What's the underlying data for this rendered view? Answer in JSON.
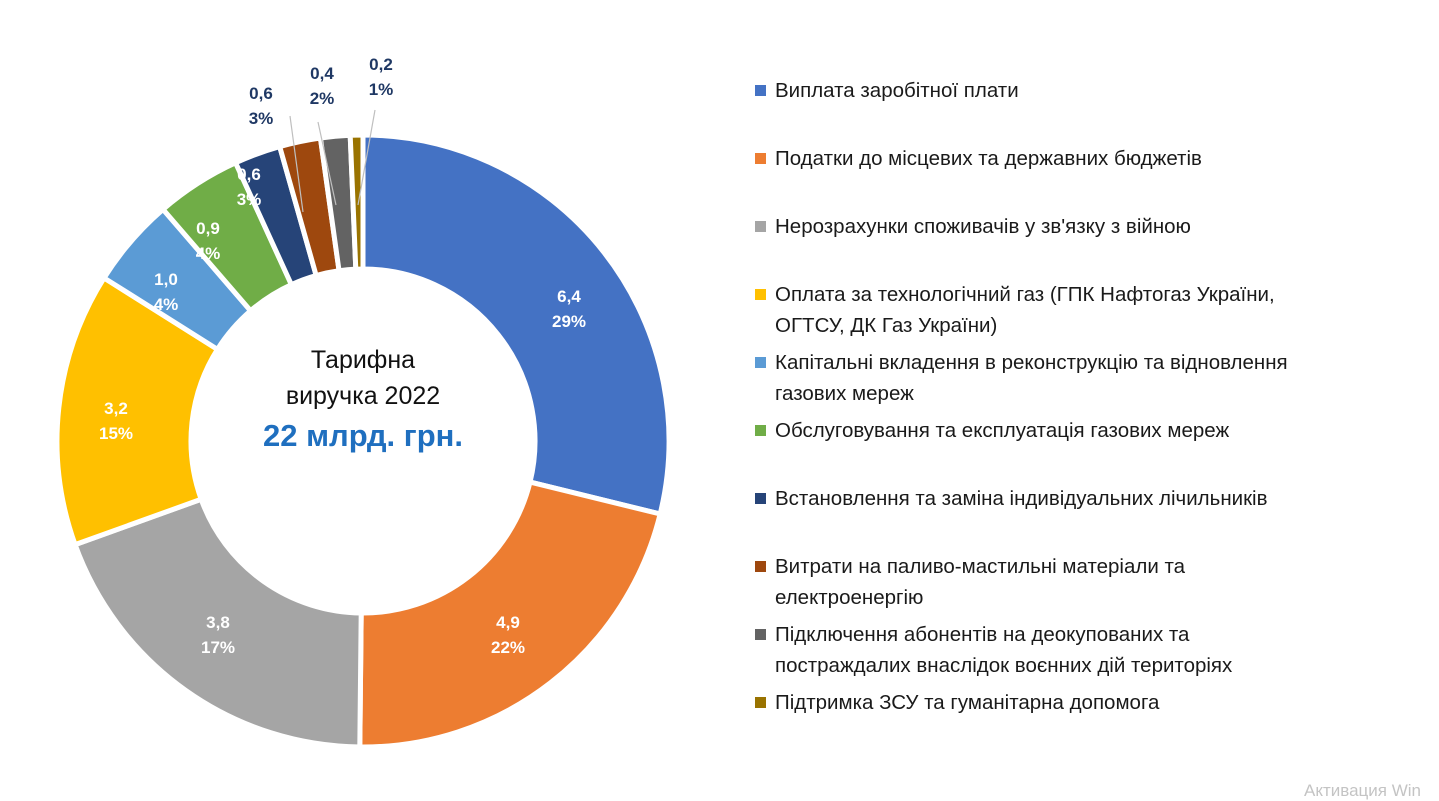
{
  "chart_data": {
    "type": "pie",
    "variant": "donut",
    "title": "Тарифна виручка 2022",
    "center_label": {
      "line1": "Тарифна",
      "line2": "виручка 2022",
      "total": "22 млрд. грн."
    },
    "unit": "млрд. грн.",
    "legend_position": "right",
    "series": [
      {
        "name": "Виплата заробітної плати",
        "value": 6.4,
        "value_label": "6,4",
        "percent": 29,
        "percent_label": "29%",
        "color": "#4472c4"
      },
      {
        "name": "Податки до місцевих та державних бюджетів",
        "value": 4.9,
        "value_label": "4,9",
        "percent": 22,
        "percent_label": "22%",
        "color": "#ed7d31"
      },
      {
        "name": "Нерозрахунки споживачів у зв'язку з війною",
        "value": 3.8,
        "value_label": "3,8",
        "percent": 17,
        "percent_label": "17%",
        "color": "#a5a5a5"
      },
      {
        "name": "Оплата за технологічний газ (ГПК Нафтогаз України, ОГТСУ, ДК Газ України)",
        "value": 3.2,
        "value_label": "3,2",
        "percent": 15,
        "percent_label": "15%",
        "color": "#ffc000"
      },
      {
        "name": "Капітальні вкладення в реконструкцію та відновлення газових мереж",
        "value": 1.0,
        "value_label": "1,0",
        "percent": 4,
        "percent_label": "4%",
        "color": "#5b9bd5"
      },
      {
        "name": "Обслуговування та експлуатація газових мереж",
        "value": 0.9,
        "value_label": "0,9",
        "percent": 4,
        "percent_label": "4%",
        "color": "#70ad47"
      },
      {
        "name": "Встановлення та заміна індивідуальних лічильників",
        "value": 0.6,
        "value_label": "0,6",
        "percent": 3,
        "percent_label": "3%",
        "color": "#264478"
      },
      {
        "name": "Витрати на паливо-мастильні матеріали та електроенергію",
        "value": 0.6,
        "value_label": "0,6",
        "percent": 3,
        "percent_label": "3%",
        "color": "#9e480e"
      },
      {
        "name": "Підключення абонентів на деокупованих та постраждалих внаслідок воєнних дій територіях",
        "value": 0.4,
        "value_label": "0,4",
        "percent": 2,
        "percent_label": "2%",
        "color": "#636363"
      },
      {
        "name": "Підтримка ЗСУ та гуманітарна допомога",
        "value": 0.2,
        "value_label": "0,2",
        "percent": 1,
        "percent_label": "1%",
        "color": "#997300"
      }
    ]
  },
  "legend": {
    "items": [
      {
        "label": "Виплата заробітної плати",
        "color": "#4472c4"
      },
      {
        "label": "Податки до місцевих та державних бюджетів",
        "color": "#ed7d31"
      },
      {
        "label": "Нерозрахунки споживачів у зв'язку з війною",
        "color": "#a5a5a5"
      },
      {
        "label": "Оплата за технологічний газ (ГПК Нафтогаз України,\nОГТСУ, ДК Газ України)",
        "color": "#ffc000"
      },
      {
        "label": "Капітальні вкладення в реконструкцію та відновлення\nгазових мереж",
        "color": "#5b9bd5"
      },
      {
        "label": "Обслуговування та експлуатація газових мереж",
        "color": "#70ad47"
      },
      {
        "label": "Встановлення та заміна індивідуальних лічильників",
        "color": "#264478"
      },
      {
        "label": "Витрати на паливо-мастильні матеріали та\nелектроенергію",
        "color": "#9e480e"
      },
      {
        "label": "Підключення абонентів на деокупованих та\nпостраждалих внаслідок воєнних дій територіях",
        "color": "#636363"
      },
      {
        "label": "Підтримка ЗСУ та гуманітарна допомога",
        "color": "#997300"
      }
    ]
  },
  "watermark": "Активация Win"
}
